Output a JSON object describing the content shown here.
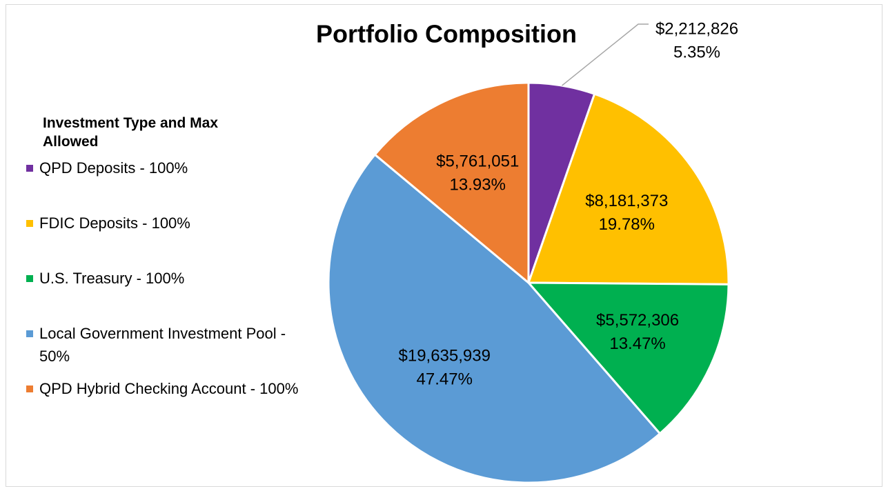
{
  "chart_data": {
    "type": "pie",
    "title": "Portfolio Composition",
    "legend_title": "Investment Type and Max Allowed",
    "legend": "left",
    "categories": [
      "QPD Deposits - 100%",
      "FDIC Deposits - 100%",
      "U.S. Treasury - 100%",
      "Local Government Investment Pool - 50%",
      "QPD Hybrid Checking Account - 100%"
    ],
    "values": [
      5.35,
      19.78,
      13.47,
      47.47,
      13.93
    ],
    "value_labels": [
      "5.35%",
      "19.78%",
      "13.47%",
      "47.47%",
      "13.93%"
    ],
    "amount_labels": [
      "$2,212,826",
      "$8,181,373",
      "$5,572,306",
      "$19,635,939",
      "$5,761,051"
    ],
    "colors": [
      "#7030a0",
      "#ffc000",
      "#00b050",
      "#5b9bd5",
      "#ed7d31"
    ]
  }
}
